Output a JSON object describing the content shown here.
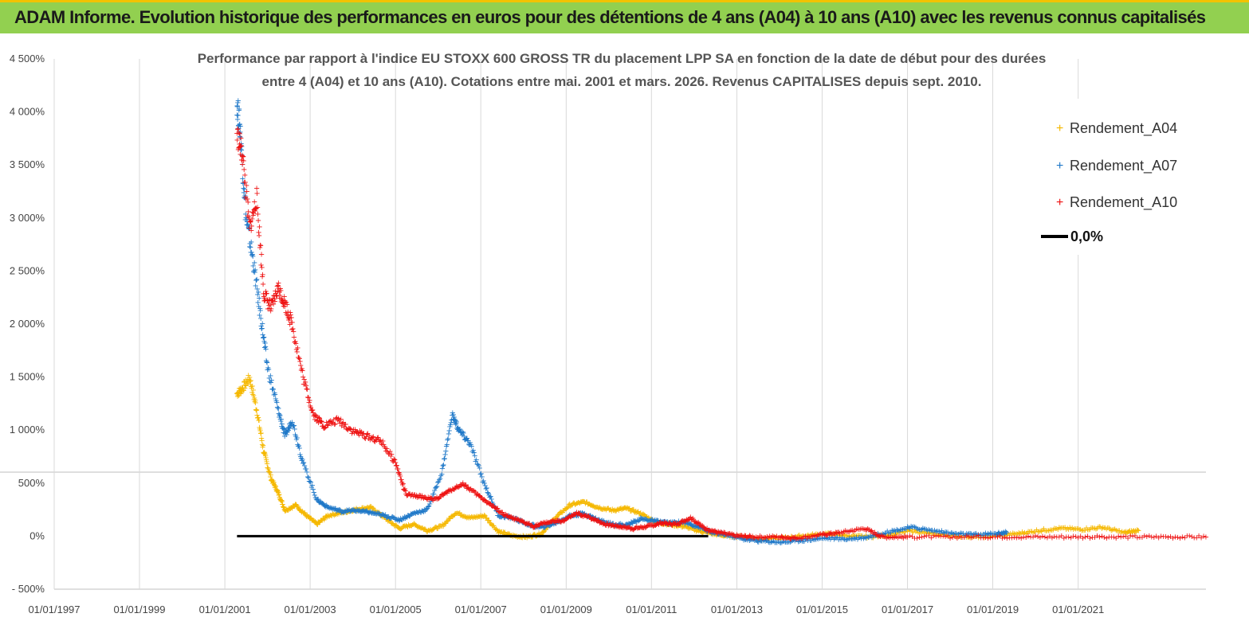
{
  "header": {
    "title": "ADAM Informe. Evolution historique des performances en euros pour des détentions de 4 ans (A04) à 10 ans (A10) avec les revenus connus capitalisés"
  },
  "chart_data": {
    "type": "scatter",
    "title_line1": "Performance par rapport à l'indice EU STOXX 600 GROSS TR  du placement LPP SA en fonction de la date de début pour des durées",
    "title_line2": "entre 4 (A04) et 10 ans (A10). Cotations entre mai. 2001 et mars. 2026. Revenus CAPITALISES depuis sept. 2010.",
    "xlabel": "",
    "ylabel": "",
    "x_ticks": [
      "01/01/1997",
      "01/01/1999",
      "01/01/2001",
      "01/01/2003",
      "01/01/2005",
      "01/01/2007",
      "01/01/2009",
      "01/01/2011",
      "01/01/2013",
      "01/01/2015",
      "01/01/2017",
      "01/01/2019",
      "01/01/2021"
    ],
    "y_ticks": [
      "4 500%",
      "4 000%",
      "3 500%",
      "3 000%",
      "2 500%",
      "2 000%",
      "1 500%",
      "1 000%",
      "500%",
      "0%",
      "- 500%"
    ],
    "ylim": [
      -500,
      4500
    ],
    "xlim": [
      "1997-01-01",
      "2023-12-31"
    ],
    "grid": "vertical",
    "legend_position": "top-right",
    "legend": [
      "Rendement_A04",
      "Rendement_A07",
      "Rendement_A10",
      "0,0%"
    ],
    "colors": {
      "A04": "#f5b800",
      "A07": "#1f78c8",
      "A10": "#ee1111",
      "zero": "#000000"
    },
    "series": [
      {
        "name": "Rendement_A04",
        "color": "#f5b800",
        "points": [
          [
            "2001-04-15",
            1350
          ],
          [
            "2001-06-01",
            1400
          ],
          [
            "2001-08-01",
            1500
          ],
          [
            "2001-10-01",
            1200
          ],
          [
            "2001-12-01",
            800
          ],
          [
            "2002-02-01",
            550
          ],
          [
            "2002-04-01",
            420
          ],
          [
            "2002-06-01",
            250
          ],
          [
            "2002-09-01",
            300
          ],
          [
            "2002-12-01",
            200
          ],
          [
            "2003-03-01",
            120
          ],
          [
            "2003-06-01",
            200
          ],
          [
            "2003-10-01",
            230
          ],
          [
            "2004-02-01",
            260
          ],
          [
            "2004-06-01",
            280
          ],
          [
            "2004-10-01",
            180
          ],
          [
            "2005-02-01",
            80
          ],
          [
            "2005-06-01",
            120
          ],
          [
            "2005-10-01",
            60
          ],
          [
            "2006-02-01",
            100
          ],
          [
            "2006-06-01",
            230
          ],
          [
            "2006-10-01",
            180
          ],
          [
            "2007-02-01",
            200
          ],
          [
            "2007-06-01",
            50
          ],
          [
            "2007-10-01",
            10
          ],
          [
            "2008-02-01",
            0
          ],
          [
            "2008-06-01",
            30
          ],
          [
            "2008-10-01",
            180
          ],
          [
            "2009-02-01",
            300
          ],
          [
            "2009-06-01",
            330
          ],
          [
            "2009-10-01",
            280
          ],
          [
            "2010-02-01",
            250
          ],
          [
            "2010-06-01",
            270
          ],
          [
            "2010-10-01",
            220
          ],
          [
            "2011-02-01",
            140
          ],
          [
            "2011-06-01",
            120
          ],
          [
            "2011-10-01",
            100
          ],
          [
            "2012-02-01",
            60
          ],
          [
            "2012-06-01",
            30
          ],
          [
            "2012-10-01",
            10
          ],
          [
            "2013-03-01",
            0
          ],
          [
            "2013-08-01",
            -20
          ],
          [
            "2014-02-01",
            -10
          ],
          [
            "2014-08-01",
            10
          ],
          [
            "2015-02-01",
            30
          ],
          [
            "2015-08-01",
            10
          ],
          [
            "2016-02-01",
            0
          ],
          [
            "2016-08-01",
            20
          ],
          [
            "2017-02-01",
            60
          ],
          [
            "2017-08-01",
            30
          ],
          [
            "2018-02-01",
            10
          ],
          [
            "2018-08-01",
            0
          ],
          [
            "2019-02-01",
            10
          ],
          [
            "2019-08-01",
            30
          ],
          [
            "2020-02-01",
            60
          ],
          [
            "2020-08-01",
            80
          ],
          [
            "2021-02-01",
            70
          ],
          [
            "2021-08-01",
            90
          ],
          [
            "2022-02-01",
            40
          ],
          [
            "2022-06-01",
            60
          ]
        ]
      },
      {
        "name": "Rendement_A07",
        "color": "#1f78c8",
        "points": [
          [
            "2001-04-15",
            4100
          ],
          [
            "2001-05-15",
            3800
          ],
          [
            "2001-07-01",
            3000
          ],
          [
            "2001-09-01",
            2600
          ],
          [
            "2001-11-01",
            2100
          ],
          [
            "2002-01-01",
            1600
          ],
          [
            "2002-04-01",
            1200
          ],
          [
            "2002-06-01",
            950
          ],
          [
            "2002-08-01",
            1100
          ],
          [
            "2002-11-01",
            700
          ],
          [
            "2003-03-01",
            350
          ],
          [
            "2003-06-01",
            280
          ],
          [
            "2003-10-01",
            240
          ],
          [
            "2004-02-01",
            250
          ],
          [
            "2004-06-01",
            230
          ],
          [
            "2004-10-01",
            200
          ],
          [
            "2005-02-01",
            160
          ],
          [
            "2005-06-01",
            220
          ],
          [
            "2005-10-01",
            260
          ],
          [
            "2006-02-01",
            600
          ],
          [
            "2006-05-01",
            1150
          ],
          [
            "2006-07-01",
            1000
          ],
          [
            "2006-10-01",
            880
          ],
          [
            "2007-02-01",
            500
          ],
          [
            "2007-06-01",
            200
          ],
          [
            "2007-10-01",
            180
          ],
          [
            "2008-02-01",
            120
          ],
          [
            "2008-06-01",
            90
          ],
          [
            "2008-10-01",
            130
          ],
          [
            "2009-02-01",
            200
          ],
          [
            "2009-06-01",
            220
          ],
          [
            "2009-10-01",
            160
          ],
          [
            "2010-02-01",
            120
          ],
          [
            "2010-06-01",
            110
          ],
          [
            "2010-10-01",
            170
          ],
          [
            "2011-02-01",
            150
          ],
          [
            "2011-06-01",
            130
          ],
          [
            "2011-10-01",
            140
          ],
          [
            "2012-02-01",
            100
          ],
          [
            "2012-06-01",
            40
          ],
          [
            "2012-10-01",
            20
          ],
          [
            "2013-03-01",
            -20
          ],
          [
            "2013-08-01",
            -40
          ],
          [
            "2014-02-01",
            -50
          ],
          [
            "2014-08-01",
            -30
          ],
          [
            "2015-02-01",
            -10
          ],
          [
            "2015-08-01",
            -20
          ],
          [
            "2016-02-01",
            0
          ],
          [
            "2016-08-01",
            50
          ],
          [
            "2017-02-01",
            90
          ],
          [
            "2017-08-01",
            60
          ],
          [
            "2018-02-01",
            30
          ],
          [
            "2018-08-01",
            20
          ],
          [
            "2019-02-01",
            30
          ],
          [
            "2019-05-01",
            40
          ]
        ]
      },
      {
        "name": "Rendement_A10",
        "color": "#ee1111",
        "points": [
          [
            "2001-04-15",
            3800
          ],
          [
            "2001-06-01",
            3600
          ],
          [
            "2001-08-01",
            2900
          ],
          [
            "2001-10-01",
            3200
          ],
          [
            "2001-12-01",
            2300
          ],
          [
            "2002-02-01",
            2150
          ],
          [
            "2002-04-01",
            2350
          ],
          [
            "2002-06-01",
            2200
          ],
          [
            "2002-08-01",
            2000
          ],
          [
            "2002-11-01",
            1500
          ],
          [
            "2003-02-01",
            1150
          ],
          [
            "2003-05-01",
            1050
          ],
          [
            "2003-09-01",
            1100
          ],
          [
            "2004-01-01",
            1000
          ],
          [
            "2004-05-01",
            950
          ],
          [
            "2004-09-01",
            900
          ],
          [
            "2005-01-01",
            700
          ],
          [
            "2005-04-01",
            400
          ],
          [
            "2005-08-01",
            380
          ],
          [
            "2005-12-01",
            350
          ],
          [
            "2006-04-01",
            430
          ],
          [
            "2006-08-01",
            500
          ],
          [
            "2006-12-01",
            400
          ],
          [
            "2007-04-01",
            300
          ],
          [
            "2007-08-01",
            200
          ],
          [
            "2007-12-01",
            150
          ],
          [
            "2008-04-01",
            100
          ],
          [
            "2008-08-01",
            140
          ],
          [
            "2008-12-01",
            150
          ],
          [
            "2009-04-01",
            220
          ],
          [
            "2009-08-01",
            180
          ],
          [
            "2009-12-01",
            120
          ],
          [
            "2010-04-01",
            100
          ],
          [
            "2010-08-01",
            80
          ],
          [
            "2010-12-01",
            100
          ],
          [
            "2011-04-01",
            130
          ],
          [
            "2011-08-01",
            120
          ],
          [
            "2011-12-01",
            180
          ],
          [
            "2012-04-01",
            80
          ],
          [
            "2012-08-01",
            40
          ],
          [
            "2013-01-01",
            10
          ],
          [
            "2013-06-01",
            0
          ],
          [
            "2014-01-01",
            0
          ],
          [
            "2014-06-01",
            -10
          ],
          [
            "2015-01-01",
            20
          ],
          [
            "2015-06-01",
            40
          ],
          [
            "2016-01-01",
            80
          ],
          [
            "2016-06-01",
            0
          ],
          [
            "2017-01-01",
            0
          ],
          [
            "2018-01-01",
            0
          ],
          [
            "2019-01-01",
            0
          ],
          [
            "2020-01-01",
            0
          ],
          [
            "2021-01-01",
            0
          ],
          [
            "2022-01-01",
            0
          ],
          [
            "2023-01-01",
            0
          ],
          [
            "2023-12-31",
            0
          ]
        ]
      },
      {
        "name": "0,0%",
        "color": "#000000",
        "line": [
          [
            "2001-04-15",
            0
          ],
          [
            "2012-05-01",
            0
          ]
        ]
      }
    ]
  }
}
